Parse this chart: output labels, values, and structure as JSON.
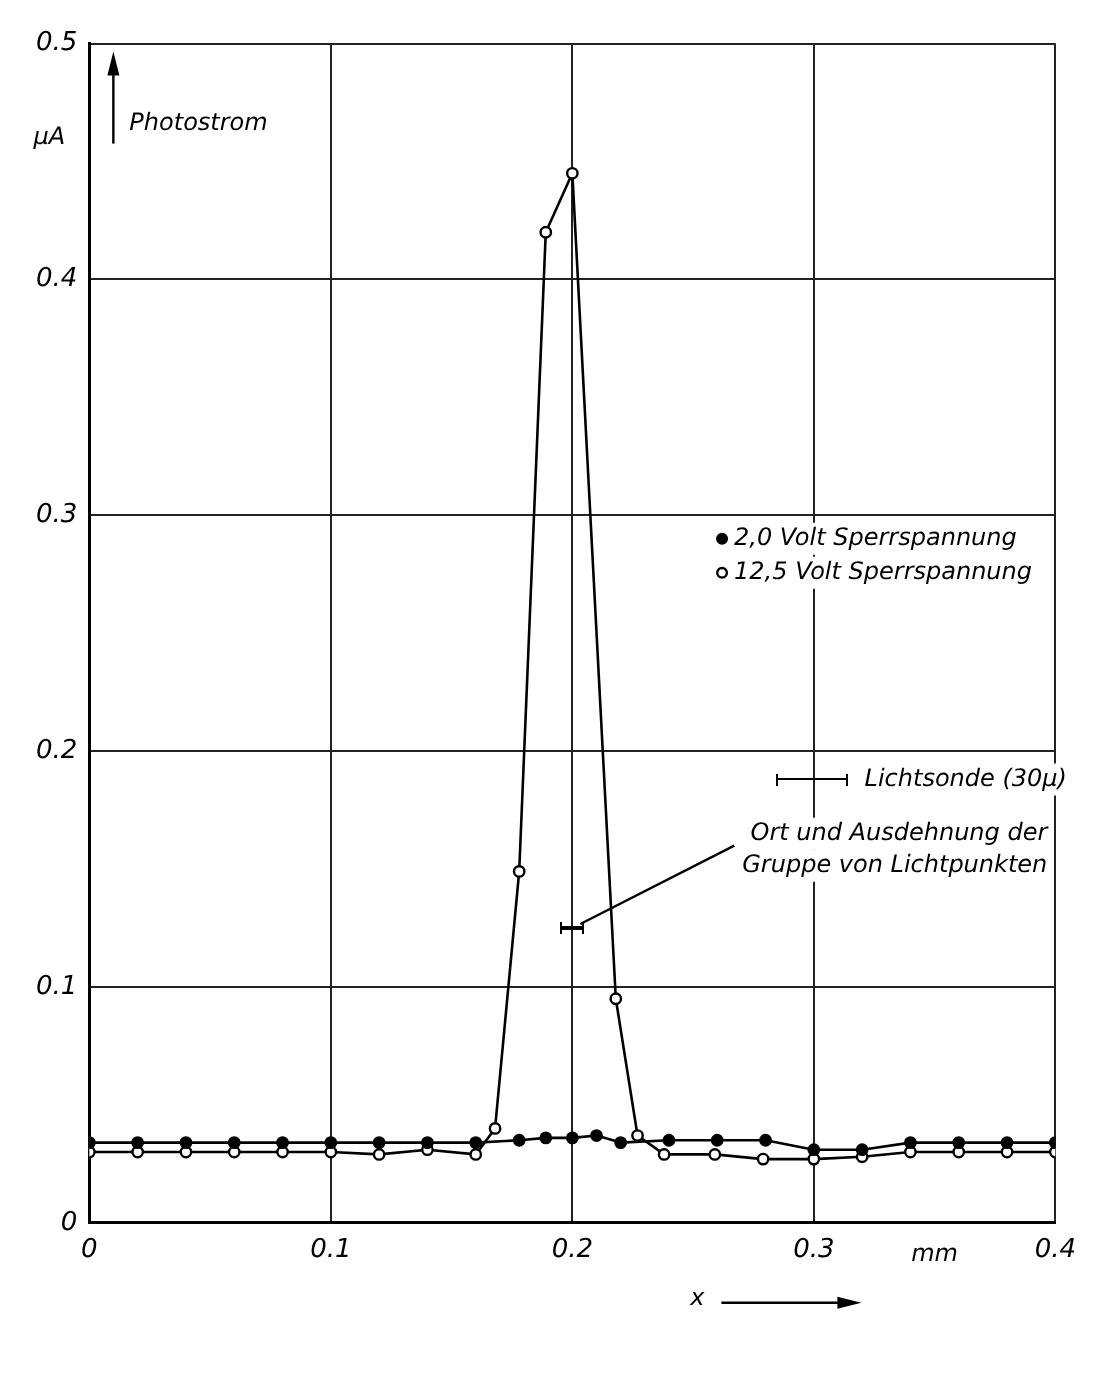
{
  "chart_data": {
    "type": "line",
    "ylabel": "Photostrom",
    "xlabel": "x",
    "xlim": [
      0,
      0.4
    ],
    "xticks": [
      0,
      0.1,
      0.2,
      0.3,
      0.4
    ],
    "ylim": [
      0,
      0.5
    ],
    "yticks": [
      0,
      0.1,
      0.2,
      0.3,
      0.4,
      0.5
    ],
    "grid": true,
    "marker": "circle",
    "legend": "right",
    "series": [
      {
        "name": "2,0 Volt Sperrspannung",
        "color": "#000000",
        "x": [
          0,
          0.02,
          0.04,
          0.06,
          0.08,
          0.1,
          0.12,
          0.14,
          0.16,
          0.178,
          0.189,
          0.2,
          0.21,
          0.22,
          0.24,
          0.26,
          0.28,
          0.3,
          0.32,
          0.34,
          0.36,
          0.38,
          0.4
        ],
        "values": [
          0.034,
          0.034,
          0.034,
          0.034,
          0.034,
          0.034,
          0.034,
          0.034,
          0.034,
          0.035,
          0.036,
          0.036,
          0.037,
          0.034,
          0.035,
          0.035,
          0.035,
          0.031,
          0.031,
          0.034,
          0.034,
          0.034,
          0.034
        ]
      },
      {
        "name": "12,5 Volt Sperrspannung",
        "color": "#000000",
        "x": [
          0,
          0.02,
          0.04,
          0.06,
          0.08,
          0.1,
          0.12,
          0.14,
          0.16,
          0.168,
          0.178,
          0.189,
          0.2,
          0.218,
          0.227,
          0.238,
          0.259,
          0.279,
          0.3,
          0.32,
          0.34,
          0.36,
          0.38,
          0.4
        ],
        "values": [
          0.03,
          0.03,
          0.03,
          0.03,
          0.03,
          0.03,
          0.029,
          0.031,
          0.029,
          0.04,
          0.149,
          0.42,
          0.445,
          0.095,
          0.037,
          0.029,
          0.029,
          0.027,
          0.027,
          0.028,
          0.03,
          0.03,
          0.03,
          0.03
        ]
      }
    ],
    "annotations": [
      "μA",
      "mm",
      "Lichtsonde (30μ)",
      "Ort und Ausdehnung der Gruppe von Lichtpunkten"
    ]
  }
}
